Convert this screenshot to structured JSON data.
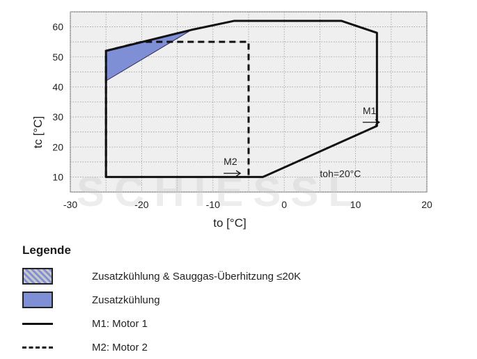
{
  "chart_data": {
    "type": "area",
    "title": "",
    "xlabel": "to [°C]",
    "ylabel": "tc [°C]",
    "xlim": [
      -30,
      20
    ],
    "ylim": [
      5,
      65
    ],
    "xticks": [
      -30,
      -20,
      -10,
      0,
      10,
      20
    ],
    "yticks": [
      10,
      20,
      30,
      40,
      50,
      60
    ],
    "grid": true,
    "series": [
      {
        "name": "M1",
        "style": "solid",
        "points": [
          [
            -25,
            52
          ],
          [
            -13,
            59
          ],
          [
            -7,
            62
          ],
          [
            8,
            62
          ],
          [
            13,
            58
          ],
          [
            13,
            27
          ],
          [
            -3,
            10
          ],
          [
            -25,
            10
          ]
        ]
      },
      {
        "name": "M2",
        "style": "dashed",
        "points": [
          [
            -25,
            10
          ],
          [
            -25,
            52
          ],
          [
            -20,
            55
          ],
          [
            -5,
            55
          ],
          [
            -5,
            10
          ]
        ]
      },
      {
        "name": "Zusatzkühlung",
        "style": "filled",
        "color": "#7f8fd6",
        "points": [
          [
            -25,
            42
          ],
          [
            -25,
            52
          ],
          [
            -13,
            59
          ]
        ]
      }
    ],
    "annotations": [
      {
        "text": "M1",
        "x": 11,
        "y": 31,
        "arrow": "right"
      },
      {
        "text": "M2",
        "x": -8.5,
        "y": 14,
        "arrow": "right"
      },
      {
        "text": "toh=20°C",
        "x": 5,
        "y": 10
      }
    ]
  },
  "watermark": "SCHIESSL",
  "legend": {
    "title": "Legende",
    "items": [
      {
        "swatch": "hatch",
        "label": "Zusatzkühlung & Sauggas-Überhitzung ≤20K"
      },
      {
        "swatch": "blue",
        "label": "Zusatzkühlung"
      },
      {
        "swatch": "solid",
        "label": "M1: Motor 1"
      },
      {
        "swatch": "dashed",
        "label": "M2: Motor 2"
      }
    ]
  }
}
